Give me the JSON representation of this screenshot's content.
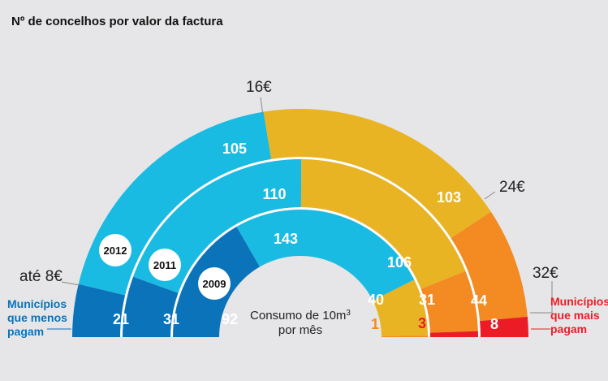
{
  "title": "Nº de concelhos por valor da factura",
  "center_label": {
    "line1": "Consumo de 10m",
    "superscript": "3",
    "line2": "por mês"
  },
  "price_labels": [
    "até 8€",
    "16€",
    "24€",
    "32€"
  ],
  "group_labels": {
    "low": [
      "Municípios",
      "que menos",
      "pagam"
    ],
    "high": [
      "Municípios",
      "que mais",
      "pagam"
    ]
  },
  "colors": {
    "background": "#e6e6e8",
    "ate_8": "#0a73ba",
    "8_16": "#1abbe2",
    "16_24": "#e9b424",
    "24_32": "#f48a22",
    "over_32": "#ec1c26",
    "low_label": "#0a73ba",
    "high_label": "#ec1c26"
  },
  "chart_data": {
    "type": "pie",
    "subtype": "nested-semicircle-donut",
    "title": "Nº de concelhos por valor da factura",
    "categories": [
      "até 8€",
      "8€–16€",
      "16€–24€",
      "24€–32€",
      "mais de 32€"
    ],
    "series": [
      {
        "name": "2009",
        "values": [
          92,
          143,
          40,
          1,
          0
        ],
        "label_colors": [
          "#ffffff",
          "#ffffff",
          "#ffffff",
          "#f48a22",
          null
        ]
      },
      {
        "name": "2011",
        "values": [
          31,
          110,
          106,
          31,
          3
        ],
        "label_colors": [
          "#ffffff",
          "#ffffff",
          "#ffffff",
          "#ffffff",
          "#ec1c26"
        ]
      },
      {
        "name": "2012",
        "values": [
          21,
          105,
          103,
          44,
          8
        ],
        "label_colors": [
          "#ffffff",
          "#ffffff",
          "#ffffff",
          "#ffffff",
          "#ffffff"
        ]
      }
    ],
    "annotation": "Consumo de 10m3 por mês",
    "legend": "none"
  }
}
